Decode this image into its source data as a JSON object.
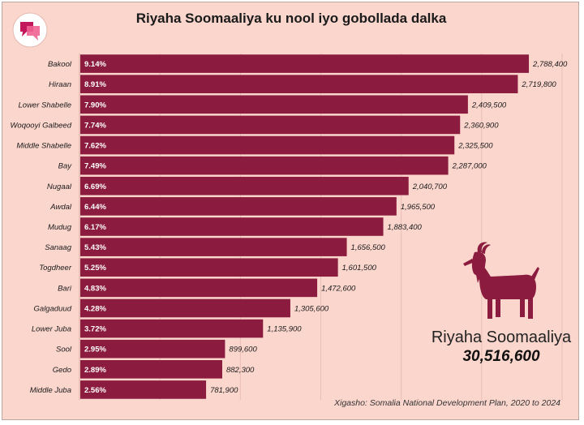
{
  "title": "Riyaha Soomaaliya ku nool iyo gobollada dalka",
  "total": {
    "label": "Riyaha Soomaaliya",
    "value": "30,516,600"
  },
  "source": "Xigasho: Somalia National Development Plan, 2020 to 2024",
  "colors": {
    "background": "#fbd6cd",
    "bar": "#8b1c3f",
    "logo": "#c2185b"
  },
  "icons": {
    "logo": "speech-bubble-logo-icon",
    "goat": "goat-icon"
  },
  "chart_data": {
    "type": "bar",
    "orientation": "horizontal",
    "title": "Riyaha Soomaaliya ku nool iyo gobollada dalka",
    "categories": [
      "Bakool",
      "Hiraan",
      "Lower Shabelle",
      "Woqooyi Galbeed",
      "Middle Shabelle",
      "Bay",
      "Nugaal",
      "Awdal",
      "Mudug",
      "Sanaag",
      "Togdheer",
      "Bari",
      "Galgaduud",
      "Lower Juba",
      "Sool",
      "Gedo",
      "Middle Juba"
    ],
    "values": [
      2788400,
      2719800,
      2409500,
      2360900,
      2325500,
      2287000,
      2040700,
      1965500,
      1883400,
      1656500,
      1601500,
      1472600,
      1305600,
      1135900,
      899600,
      882300,
      781900
    ],
    "value_labels": [
      "2,788,400",
      "2,719,800",
      "2,409,500",
      "2,360,900",
      "2,325,500",
      "2,287,000",
      "2,040,700",
      "1,965,500",
      "1,883,400",
      "1,656,500",
      "1,601,500",
      "1,472,600",
      "1,305,600",
      "1,135,900",
      "899,600",
      "882,300",
      "781,900"
    ],
    "percent_labels": [
      "9.14%",
      "8.91%",
      "7.90%",
      "7.74%",
      "7.62%",
      "7.49%",
      "6.69%",
      "6.44%",
      "6.17%",
      "5.43%",
      "5.25%",
      "4.83%",
      "4.28%",
      "3.72%",
      "2.95%",
      "2.89%",
      "2.56%"
    ],
    "xlim": [
      0,
      3000000
    ],
    "grid": true,
    "legend": "none"
  }
}
